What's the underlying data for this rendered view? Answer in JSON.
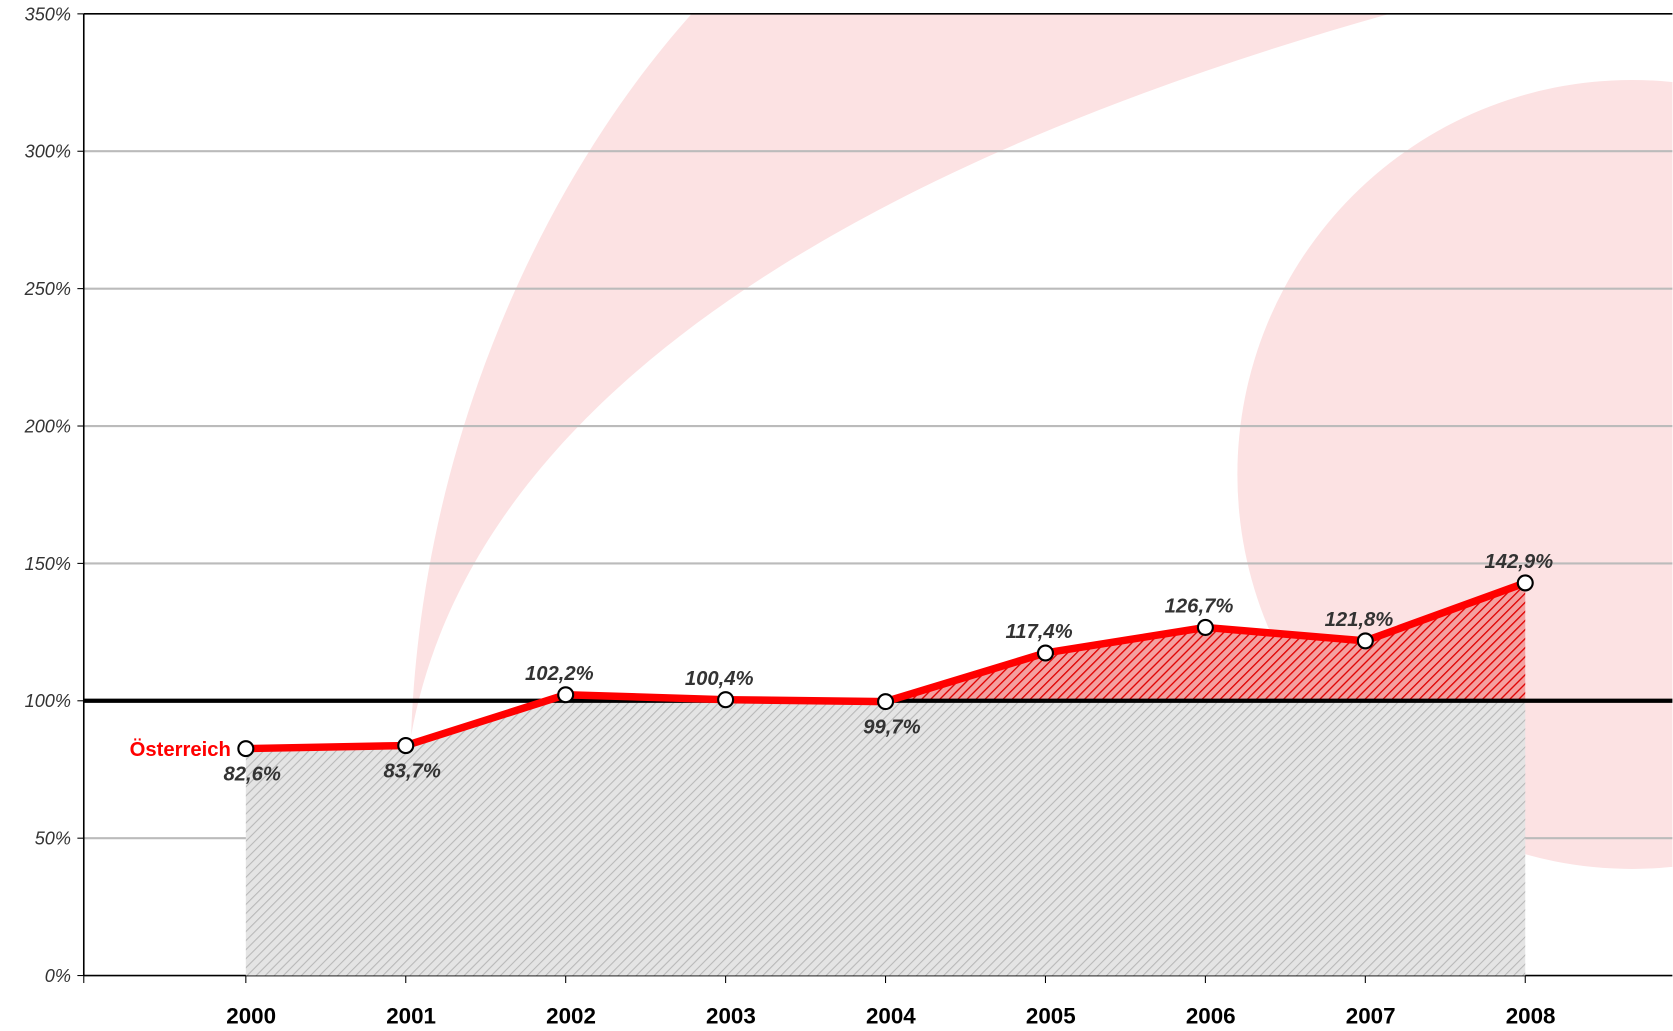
{
  "chart_data": {
    "type": "line",
    "categories": [
      "2000",
      "2001",
      "2002",
      "2003",
      "2004",
      "2005",
      "2006",
      "2007",
      "2008"
    ],
    "series": [
      {
        "name": "Österreich",
        "color": "#ff0000",
        "values": [
          82.6,
          83.7,
          102.2,
          100.4,
          99.7,
          117.4,
          126.7,
          121.8,
          142.9
        ],
        "value_labels": [
          "82,6%",
          "83,7%",
          "102,2%",
          "100,4%",
          "99,7%",
          "117,4%",
          "126,7%",
          "121,8%",
          "142,9%"
        ]
      }
    ],
    "ylim": [
      0,
      350
    ],
    "yticks": [
      {
        "value": 0,
        "label": "0%"
      },
      {
        "value": 50,
        "label": "50%"
      },
      {
        "value": 100,
        "label": "100%"
      },
      {
        "value": 150,
        "label": "150%"
      },
      {
        "value": 200,
        "label": "200%"
      },
      {
        "value": 250,
        "label": "250%"
      },
      {
        "value": 300,
        "label": "300%"
      },
      {
        "value": 350,
        "label": "350%"
      }
    ],
    "reference_line": 100,
    "grid": true
  }
}
